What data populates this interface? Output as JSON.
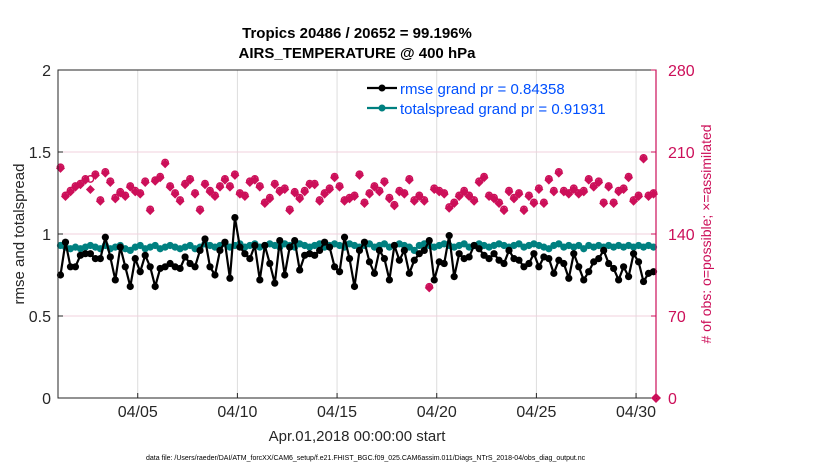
{
  "chart_data": {
    "type": "line",
    "title": [
      "Tropics 20486 / 20652 = 99.196%",
      "AIRS_TEMPERATURE @ 400 hPa"
    ],
    "xlabel": "Apr.01,2018 00:00:00 start",
    "ylabel": "rmse and totalspread",
    "y2label": "# of obs: o=possible; ×=assimilated",
    "x_start_day": 1.0,
    "x_step_days": 0.25,
    "xlim": [
      1.0,
      31.0
    ],
    "ylim": [
      0,
      2
    ],
    "y2lim": [
      0,
      280
    ],
    "xticks": [
      {
        "day": 5,
        "label": "04/05"
      },
      {
        "day": 10,
        "label": "04/10"
      },
      {
        "day": 15,
        "label": "04/15"
      },
      {
        "day": 20,
        "label": "04/20"
      },
      {
        "day": 25,
        "label": "04/25"
      },
      {
        "day": 30,
        "label": "04/30"
      }
    ],
    "yticks": [
      "0",
      "0.5",
      "1",
      "1.5",
      "2"
    ],
    "y2ticks": [
      "0",
      "70",
      "140",
      "210",
      "280"
    ],
    "grid": true,
    "legend_position": "top-right",
    "colors": {
      "rmse": "#000000",
      "totalspread": "#008080",
      "obs": "#cc0f59",
      "legend_text": "#0050ff"
    },
    "series": [
      {
        "name": "rmse grand pr = 0.84358",
        "axis": "left",
        "values": [
          0.75,
          0.95,
          0.8,
          0.8,
          0.87,
          0.88,
          0.88,
          0.85,
          0.85,
          0.98,
          0.86,
          0.72,
          0.92,
          0.8,
          0.68,
          0.85,
          0.77,
          0.87,
          0.8,
          0.68,
          0.79,
          0.8,
          0.82,
          0.8,
          0.79,
          0.86,
          0.82,
          0.8,
          0.9,
          0.97,
          0.8,
          0.75,
          0.9,
          0.95,
          0.73,
          1.1,
          0.92,
          0.88,
          0.85,
          0.93,
          0.72,
          0.93,
          0.82,
          0.7,
          0.96,
          0.75,
          0.92,
          0.96,
          0.78,
          0.87,
          0.88,
          0.87,
          0.9,
          0.95,
          0.92,
          0.8,
          0.77,
          0.98,
          0.85,
          0.68,
          0.9,
          0.95,
          0.83,
          0.76,
          0.9,
          0.85,
          0.72,
          0.93,
          0.84,
          0.9,
          0.76,
          0.84,
          0.88,
          0.9,
          0.96,
          0.72,
          0.83,
          0.82,
          0.99,
          0.74,
          0.88,
          0.85,
          0.86,
          0.93,
          0.91,
          0.87,
          0.85,
          0.88,
          0.84,
          0.82,
          0.9,
          0.85,
          0.84,
          0.8,
          0.82,
          0.88,
          0.8,
          0.86,
          0.85,
          0.76,
          0.84,
          0.82,
          0.73,
          0.88,
          0.8,
          0.72,
          0.77,
          0.83,
          0.85,
          0.9,
          0.82,
          0.79,
          0.72,
          0.8,
          0.74,
          0.88,
          0.83,
          0.71,
          0.76,
          0.77
        ]
      },
      {
        "name": "totalspread grand pr = 0.91931",
        "axis": "left",
        "values": [
          0.93,
          0.92,
          0.91,
          0.92,
          0.91,
          0.92,
          0.93,
          0.92,
          0.91,
          0.93,
          0.91,
          0.92,
          0.93,
          0.91,
          0.9,
          0.92,
          0.93,
          0.91,
          0.92,
          0.93,
          0.91,
          0.92,
          0.93,
          0.92,
          0.91,
          0.92,
          0.93,
          0.91,
          0.92,
          0.94,
          0.93,
          0.92,
          0.93,
          0.94,
          0.92,
          0.93,
          0.94,
          0.92,
          0.93,
          0.94,
          0.92,
          0.93,
          0.94,
          0.93,
          0.92,
          0.94,
          0.93,
          0.92,
          0.94,
          0.93,
          0.92,
          0.93,
          0.94,
          0.92,
          0.93,
          0.94,
          0.93,
          0.92,
          0.94,
          0.93,
          0.92,
          0.93,
          0.94,
          0.92,
          0.93,
          0.94,
          0.92,
          0.93,
          0.94,
          0.93,
          0.92,
          0.9,
          0.93,
          0.94,
          0.93,
          0.92,
          0.93,
          0.94,
          0.93,
          0.92,
          0.93,
          0.94,
          0.92,
          0.93,
          0.94,
          0.93,
          0.92,
          0.93,
          0.94,
          0.93,
          0.92,
          0.93,
          0.94,
          0.92,
          0.93,
          0.94,
          0.93,
          0.92,
          0.91,
          0.93,
          0.94,
          0.92,
          0.93,
          0.92,
          0.93,
          0.91,
          0.93,
          0.92,
          0.93,
          0.92,
          0.93,
          0.92,
          0.93,
          0.92,
          0.93,
          0.92,
          0.93,
          0.92,
          0.93,
          0.92
        ]
      },
      {
        "name": "obs assimilated",
        "axis": "right",
        "marker": "asterisk",
        "values": [
          196,
          172,
          176,
          180,
          182,
          186,
          178,
          190,
          168,
          192,
          184,
          170,
          175,
          172,
          180,
          176,
          174,
          184,
          160,
          185,
          188,
          200,
          180,
          174,
          168,
          182,
          186,
          174,
          160,
          182,
          176,
          172,
          180,
          186,
          180,
          190,
          174,
          172,
          184,
          186,
          180,
          166,
          170,
          182,
          176,
          178,
          160,
          175,
          170,
          176,
          182,
          182,
          168,
          174,
          178,
          188,
          180,
          168,
          170,
          172,
          190,
          166,
          174,
          180,
          176,
          184,
          170,
          164,
          176,
          174,
          186,
          168,
          172,
          168,
          94,
          178,
          176,
          174,
          162,
          166,
          172,
          176,
          172,
          168,
          184,
          188,
          172,
          170,
          166,
          160,
          176,
          170,
          174,
          160,
          172,
          166,
          178,
          166,
          186,
          176,
          192,
          176,
          174,
          178,
          174,
          176,
          186,
          180,
          184,
          166,
          180,
          166,
          176,
          178,
          188,
          168,
          172,
          204,
          172,
          174
        ]
      },
      {
        "name": "obs possible",
        "axis": "right",
        "marker": "circle",
        "values": [
          197,
          173,
          177,
          181,
          183,
          187,
          187,
          191,
          169,
          193,
          185,
          171,
          176,
          173,
          181,
          177,
          175,
          185,
          161,
          186,
          189,
          201,
          181,
          175,
          169,
          183,
          187,
          175,
          161,
          183,
          177,
          173,
          181,
          187,
          181,
          191,
          175,
          173,
          185,
          187,
          181,
          167,
          171,
          183,
          177,
          179,
          161,
          176,
          171,
          177,
          183,
          183,
          169,
          175,
          179,
          189,
          181,
          169,
          171,
          173,
          191,
          167,
          175,
          181,
          177,
          185,
          171,
          165,
          177,
          175,
          187,
          169,
          173,
          169,
          95,
          179,
          177,
          175,
          163,
          167,
          173,
          177,
          173,
          169,
          185,
          189,
          173,
          171,
          167,
          161,
          177,
          171,
          175,
          161,
          173,
          167,
          179,
          167,
          187,
          177,
          193,
          177,
          175,
          179,
          175,
          177,
          187,
          181,
          185,
          167,
          181,
          167,
          177,
          179,
          189,
          169,
          173,
          205,
          173,
          175
        ]
      }
    ]
  },
  "footer": "data file: /Users/raeder/DAI/ATM_forcXX/CAM6_setup/f.e21.FHIST_BGC.f09_025.CAM6assim.011/Diags_NTrS_2018-04/obs_diag_output.nc"
}
